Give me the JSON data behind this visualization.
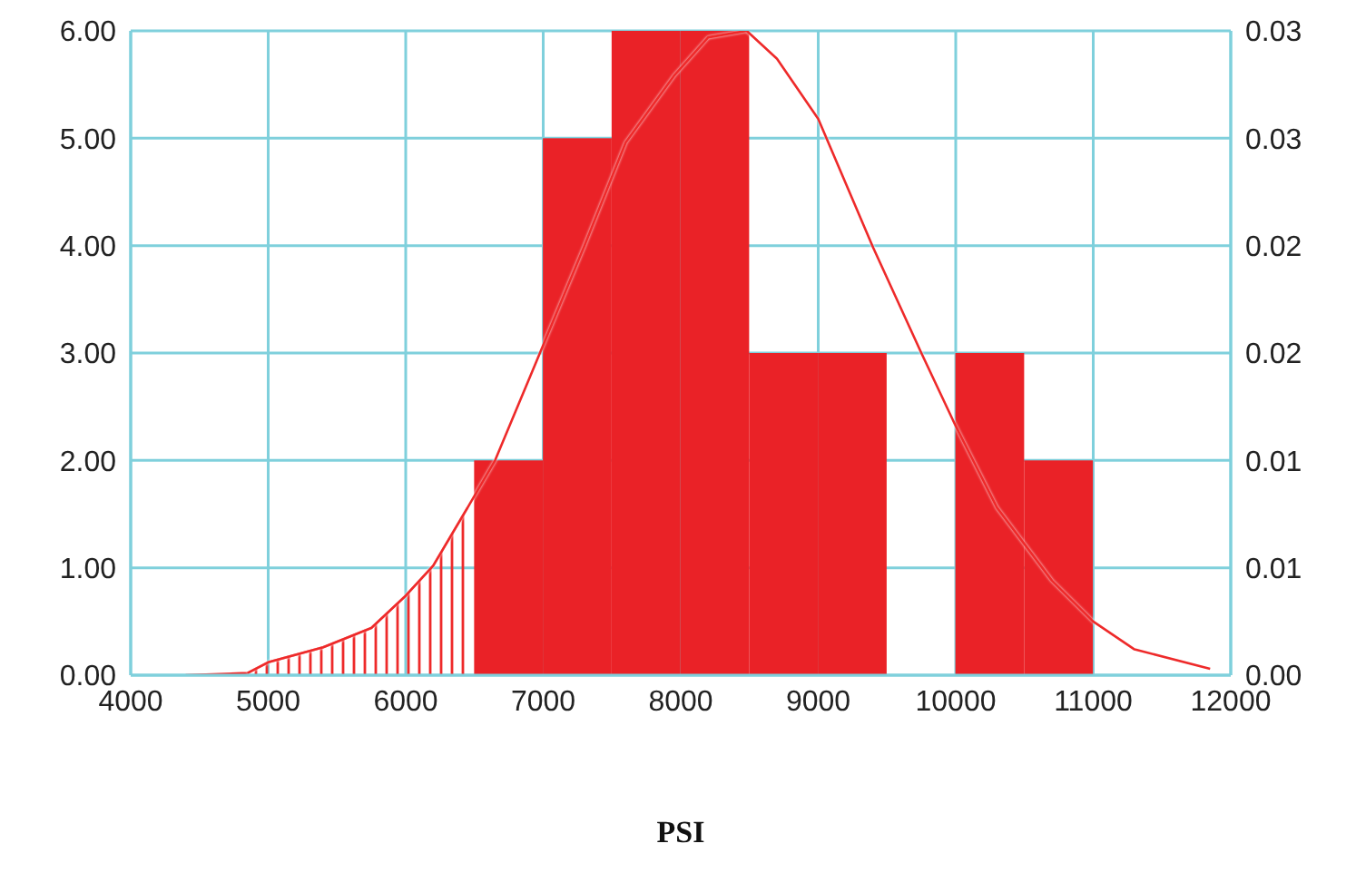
{
  "chart_data": {
    "type": "histogram",
    "xlabel": "PSI",
    "bins": [
      6500,
      7000,
      7500,
      8000,
      8500,
      9000,
      9500,
      10000,
      10500,
      11000
    ],
    "values": [
      2,
      5,
      6,
      6,
      3,
      3,
      0,
      3,
      2
    ],
    "color": "#ea2227",
    "series": [
      {
        "type": "line",
        "axis": "y2",
        "color": "#ee2a2a",
        "x": [
          4850,
          5000,
          5400,
          5750,
          6000,
          6200,
          6450,
          6650,
          6950,
          7300,
          7600,
          7950,
          8200,
          8480,
          8700,
          9000,
          9400,
          9750,
          10000,
          10300,
          10700,
          11000,
          11300,
          11850
        ],
        "values": [
          0.0001,
          0.0006,
          0.0013,
          0.0022,
          0.0037,
          0.0051,
          0.0078,
          0.01,
          0.0146,
          0.02,
          0.0248,
          0.0279,
          0.0297,
          0.03,
          0.0287,
          0.0259,
          0.0199,
          0.015,
          0.0116,
          0.0078,
          0.0044,
          0.0025,
          0.0012,
          0.0003
        ]
      },
      {
        "type": "area",
        "axis": "y2",
        "color": "#ee2a2a",
        "x": [
          4400,
          4850,
          5000,
          5400,
          5750,
          6000,
          6200,
          6450
        ],
        "values": [
          0,
          0.0001,
          0.0006,
          0.0013,
          0.0022,
          0.0037,
          0.0051,
          0.0078
        ]
      }
    ],
    "xlim": [
      4000,
      12000
    ],
    "xticks": [
      4000,
      5000,
      6000,
      7000,
      8000,
      9000,
      10000,
      11000,
      12000
    ],
    "ylim": [
      0,
      6
    ],
    "yticks": [
      {
        "value": 0,
        "label": "0.00"
      },
      {
        "value": 1,
        "label": "1.00"
      },
      {
        "value": 2,
        "label": "2.00"
      },
      {
        "value": 3,
        "label": "3.00"
      },
      {
        "value": 4,
        "label": "4.00"
      },
      {
        "value": 5,
        "label": "5.00"
      },
      {
        "value": 6,
        "label": "6.00"
      }
    ],
    "y2lim": [
      0,
      0.03
    ],
    "y2ticks": [
      {
        "value": 0,
        "label": "0.00"
      },
      {
        "value": 0.005,
        "label": "0.01"
      },
      {
        "value": 0.01,
        "label": "0.01"
      },
      {
        "value": 0.015,
        "label": "0.02"
      },
      {
        "value": 0.02,
        "label": "0.02"
      },
      {
        "value": 0.025,
        "label": "0.03"
      },
      {
        "value": 0.03,
        "label": "0.03"
      }
    ],
    "grid": true
  }
}
